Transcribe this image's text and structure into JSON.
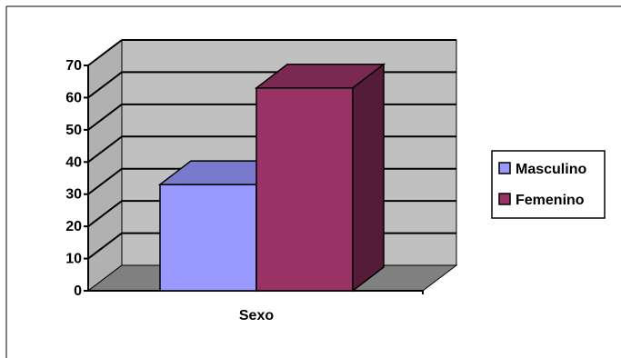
{
  "chart_data": {
    "type": "bar",
    "style": "3d-clustered-column",
    "categories": [
      "Sexo"
    ],
    "series": [
      {
        "name": "Masculino",
        "values": [
          33
        ],
        "color": "#9999FF"
      },
      {
        "name": "Femenino",
        "values": [
          63
        ],
        "color": "#993366"
      }
    ],
    "title": "",
    "xlabel": "",
    "ylabel": "",
    "ylim": [
      0,
      70
    ],
    "yticks": [
      0,
      10,
      20,
      30,
      40,
      50,
      60,
      70
    ],
    "grid": true,
    "legend_position": "right",
    "wall_color": "#C0C0C0",
    "floor_color": "#808080"
  }
}
